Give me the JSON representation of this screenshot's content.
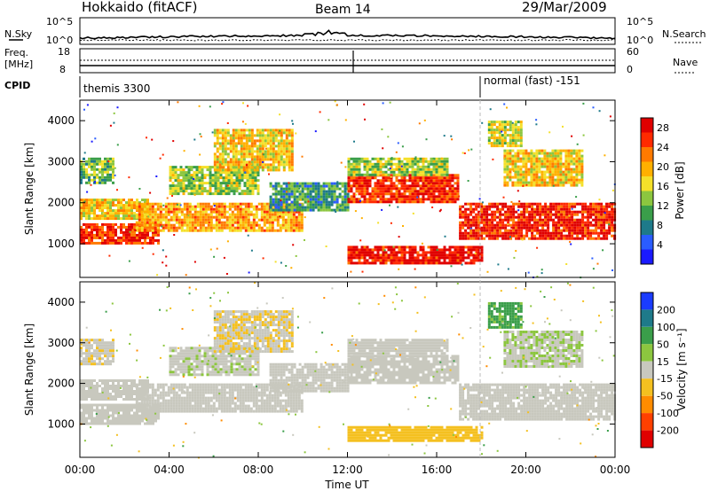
{
  "header": {
    "station": "Hokkaido (fitACF)",
    "beam": "Beam 14",
    "date": "29/Mar/2009"
  },
  "noise_panel": {
    "left_label": "N.Sky",
    "right_label": "N.Search",
    "left_ticks": [
      "10^5",
      "10^0"
    ],
    "right_ticks": [
      "10^5",
      "10^0"
    ]
  },
  "freq_panel": {
    "left_label_1": "Freq.",
    "left_label_2": "[MHz]",
    "right_label": "Nave",
    "left_ticks": [
      "18",
      "8"
    ],
    "right_ticks": [
      "60",
      "0"
    ]
  },
  "cpid": {
    "label": "CPID",
    "modes": [
      {
        "name": "themis 3300",
        "start_hour": 0
      },
      {
        "name": "normal (fast) -151",
        "start_hour": 18
      }
    ]
  },
  "x_axis": {
    "label": "Time UT",
    "ticks": [
      "00:00",
      "04:00",
      "08:00",
      "12:00",
      "16:00",
      "20:00",
      "00:00"
    ]
  },
  "power_panel": {
    "ylabel": "Slant Range [km]",
    "yticks": [
      "1000",
      "2000",
      "3000",
      "4000"
    ],
    "colorbar_label": "Power [dB]",
    "colorbar_ticks": [
      "4",
      "8",
      "12",
      "16",
      "20",
      "24",
      "28"
    ],
    "colors": [
      "#1a1aff",
      "#2a5cff",
      "#1e7a8a",
      "#3a9e4a",
      "#8cc63f",
      "#f4e02a",
      "#ffb000",
      "#ff7a00",
      "#ff2a00",
      "#e00000"
    ]
  },
  "velocity_panel": {
    "ylabel": "Slant Range [km]",
    "yticks": [
      "1000",
      "2000",
      "3000",
      "4000"
    ],
    "colorbar_label": "Velocity [m s⁻¹]",
    "colorbar_ticks": [
      "200",
      "100",
      "50",
      "15",
      "-15",
      "-50",
      "-100",
      "-200"
    ],
    "colors": [
      "#1a3cff",
      "#1e7a8a",
      "#3a9e4a",
      "#8cc63f",
      "#c8c8be",
      "#f4c020",
      "#ff8c00",
      "#ff4000",
      "#e00000"
    ]
  },
  "chart_data": {
    "type": "heatmap",
    "x_range_hours": [
      0,
      24
    ],
    "y_range_km": [
      180,
      4500
    ],
    "regions": [
      {
        "t0": 0.0,
        "t1": 3.5,
        "r0": 1000,
        "r1": 1500,
        "p": 26,
        "v": 0
      },
      {
        "t0": 0.0,
        "t1": 3.0,
        "r0": 1600,
        "r1": 2100,
        "p": 18,
        "v": 0
      },
      {
        "t0": 0.0,
        "t1": 1.5,
        "r0": 2500,
        "r1": 3100,
        "p": 12,
        "v": -5
      },
      {
        "t0": 2.5,
        "t1": 10.0,
        "r0": 1300,
        "r1": 2000,
        "p": 20,
        "v": 0
      },
      {
        "t0": 4.0,
        "t1": 8.0,
        "r0": 2200,
        "r1": 2900,
        "p": 14,
        "v": 5
      },
      {
        "t0": 6.0,
        "t1": 9.5,
        "r0": 2800,
        "r1": 3800,
        "p": 18,
        "v": -10
      },
      {
        "t0": 8.5,
        "t1": 12.0,
        "r0": 1800,
        "r1": 2500,
        "p": 10,
        "v": 0
      },
      {
        "t0": 12.0,
        "t1": 17.0,
        "r0": 2000,
        "r1": 2700,
        "p": 26,
        "v": 0
      },
      {
        "t0": 12.0,
        "t1": 16.5,
        "r0": 2700,
        "r1": 3100,
        "p": 14,
        "v": 0
      },
      {
        "t0": 12.0,
        "t1": 18.0,
        "r0": 560,
        "r1": 950,
        "p": 28,
        "v": -30
      },
      {
        "t0": 17.0,
        "t1": 24.0,
        "r0": 1100,
        "r1": 2000,
        "p": 27,
        "v": 0
      },
      {
        "t0": 19.0,
        "t1": 22.5,
        "r0": 2400,
        "r1": 3300,
        "p": 18,
        "v": 10
      },
      {
        "t0": 18.3,
        "t1": 19.8,
        "r0": 3400,
        "r1": 4000,
        "p": 16,
        "v": 60
      }
    ]
  }
}
